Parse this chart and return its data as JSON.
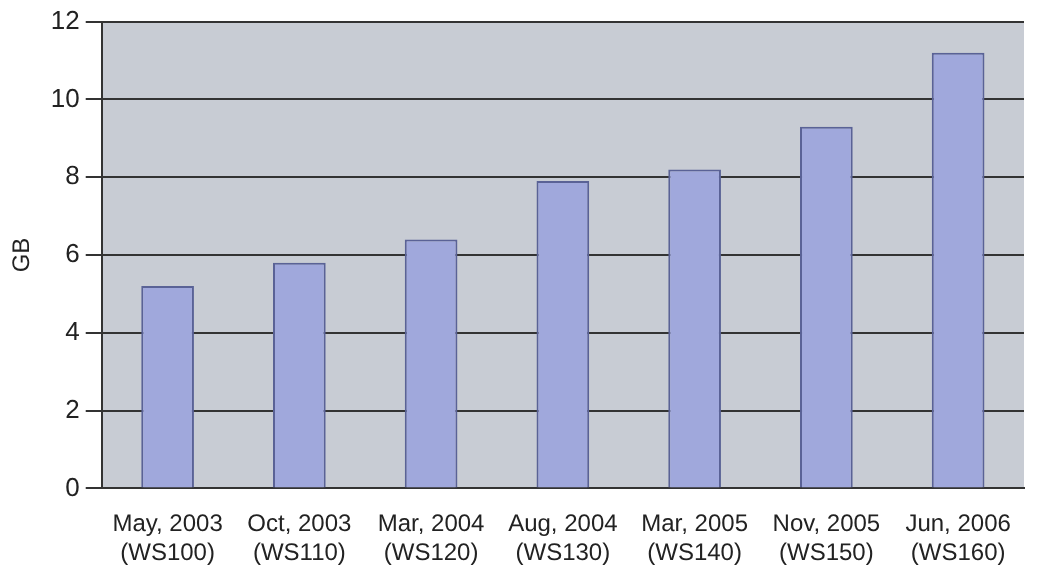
{
  "chart_data": {
    "type": "bar",
    "ylabel": "GB",
    "categories": [
      "May, 2003 (WS100)",
      "Oct, 2003 (WS110)",
      "Mar, 2004 (WS120)",
      "Aug, 2004 (WS130)",
      "Mar, 2005 (WS140)",
      "Nov, 2005 (WS150)",
      "Jun, 2006 (WS160)"
    ],
    "values": [
      5.2,
      5.8,
      6.4,
      7.9,
      8.2,
      9.3,
      11.2
    ],
    "color": "#a0a8dc",
    "ylim": [
      0,
      12
    ],
    "yticks": [
      0,
      2,
      4,
      6,
      8,
      10,
      12
    ],
    "grid": "y"
  }
}
